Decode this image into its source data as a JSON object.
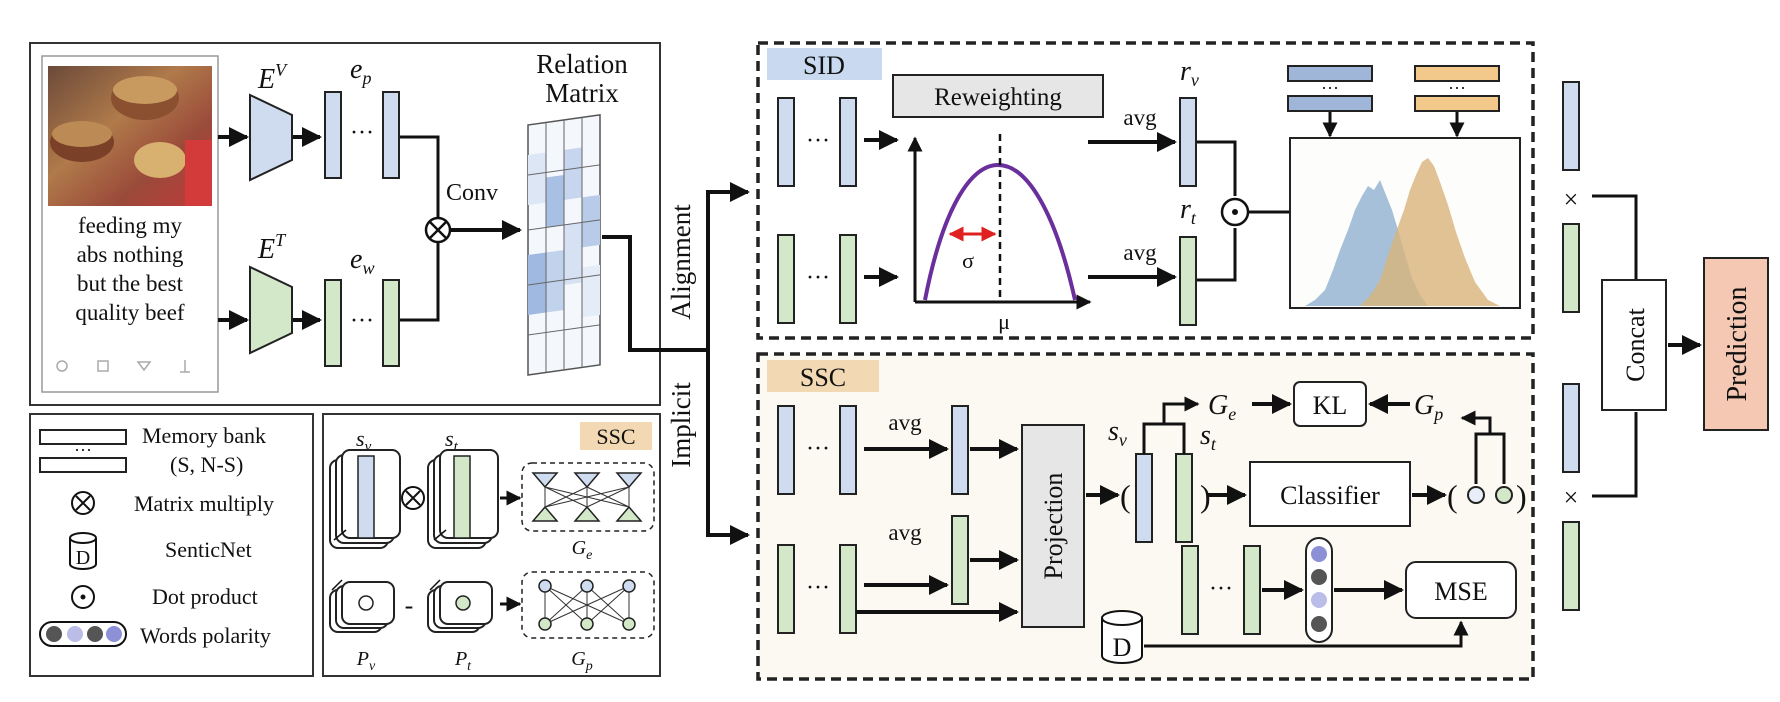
{
  "input": {
    "caption_lines": [
      "feeding my",
      "abs nothing",
      "but the best",
      "quality beef"
    ]
  },
  "encoders": {
    "visual": "E",
    "visual_sup": "V",
    "text": "E",
    "text_sup": "T",
    "ep": "e",
    "ep_sub": "p",
    "ew": "e",
    "ew_sub": "w",
    "dots": "···",
    "conv": "Conv",
    "relation_line1": "Relation",
    "relation_line2": "Matrix"
  },
  "branches": {
    "alignment": "Alignment",
    "implicit": "Implicit"
  },
  "sid": {
    "tag": "SID",
    "reweighting": "Reweighting",
    "sigma": "σ",
    "mu": "μ",
    "avg": "avg",
    "rv": "r",
    "rv_sub": "v",
    "rt": "r",
    "rt_sub": "t",
    "bank_dots": "···"
  },
  "ssc": {
    "tag": "SSC",
    "avg": "avg",
    "projection": "Projection",
    "sv": "s",
    "sv_sub": "v",
    "st": "s",
    "st_sub": "t",
    "ge": "G",
    "ge_sub": "e",
    "gp": "G",
    "gp_sub": "p",
    "kl": "KL",
    "classifier": "Classifier",
    "mse": "MSE",
    "d": "D",
    "paren_open": "(",
    "paren_close": ")",
    "dots": "···"
  },
  "output": {
    "times": "×",
    "concat": "Concat",
    "prediction": "Prediction"
  },
  "legend": {
    "items": [
      "Memory bank",
      "(S, N-S)",
      "Matrix multiply",
      "SenticNet",
      "Dot product",
      "Words polarity"
    ],
    "d": "D",
    "dots": "···"
  },
  "ssc_inset": {
    "tag": "SSC",
    "sv": "s",
    "sv_sub": "v",
    "st": "s",
    "st_sub": "t",
    "pv": "P",
    "pv_sub": "v",
    "pt": "P",
    "pt_sub": "t",
    "ge": "G",
    "ge_sub": "e",
    "gp": "G",
    "gp_sub": "p",
    "minus": "-"
  },
  "colors": {
    "blue_fill": "#cfdcf0",
    "green_fill": "#d2e8c8",
    "sid_tag": "#c9daf0",
    "ssc_tag": "#f2d9b4",
    "prediction": "#f5c8b4",
    "gray_box": "#e6e6e6",
    "purple_curve": "#6a2f9c",
    "red_arrow": "#e02020"
  }
}
